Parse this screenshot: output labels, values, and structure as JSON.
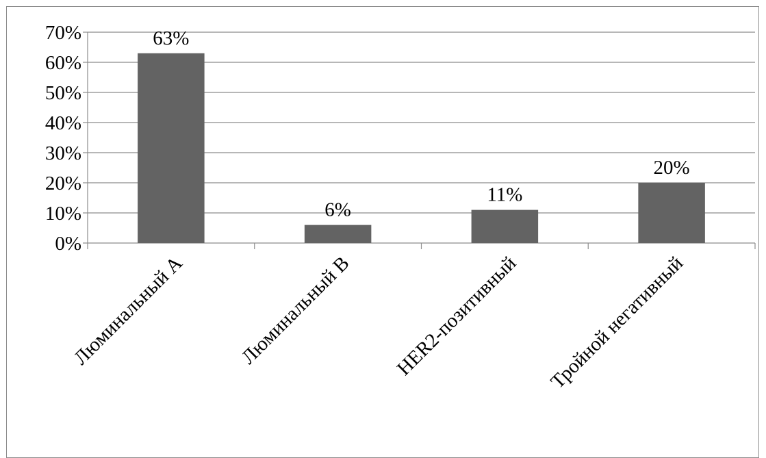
{
  "chart_data": {
    "type": "bar",
    "title": "",
    "xlabel": "",
    "ylabel": "",
    "categories": [
      "Люминальный А",
      "Люминальный В",
      "HER2-позитивный",
      "Тройной негативный"
    ],
    "values": [
      63,
      6,
      11,
      20
    ],
    "data_labels": [
      "63%",
      "6%",
      "11%",
      "20%"
    ],
    "ylim": [
      0,
      70
    ],
    "y_ticks": [
      0,
      10,
      20,
      30,
      40,
      50,
      60,
      70
    ],
    "y_tick_labels": [
      "0%",
      "10%",
      "20%",
      "30%",
      "40%",
      "50%",
      "60%",
      "70%"
    ],
    "grid": true,
    "legend": "none",
    "colors": {
      "bar": "#636363",
      "grid": "#8c8c8c",
      "axis": "#8c8c8c"
    }
  }
}
